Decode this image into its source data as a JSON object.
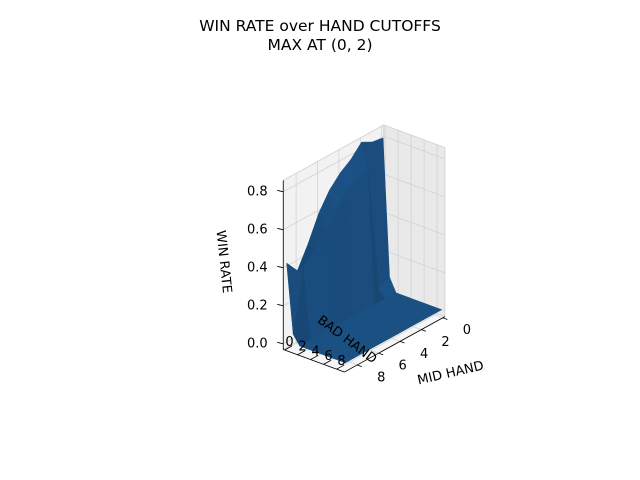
{
  "chart_data": {
    "type": "surface",
    "title": "WIN RATE over HAND CUTOFFS",
    "subtitle": "MAX AT (0, 2)",
    "xlabel": "MID HAND",
    "ylabel": "BAD HAND",
    "zlabel": "WIN RATE",
    "x_ticks": [
      "0",
      "2",
      "4",
      "6",
      "8"
    ],
    "y_ticks": [
      "0",
      "2",
      "4",
      "6",
      "8"
    ],
    "z_ticks": [
      "0.0",
      "0.2",
      "0.4",
      "0.6",
      "0.8"
    ],
    "zlim": [
      0,
      0.8
    ],
    "grid": true,
    "color": "#1f5a8f",
    "mid_hand": [
      0,
      1,
      2,
      3,
      4,
      5,
      6,
      7,
      8,
      9
    ],
    "bad_hand": [
      0,
      1,
      2,
      3,
      4,
      5,
      6,
      7,
      8,
      9
    ],
    "win_rate_at_bad_hand_0": [
      0.8,
      0.81,
      0.84,
      0.78,
      0.74,
      0.68,
      0.59,
      0.46,
      0.35,
      0.42
    ],
    "win_rate_at_bad_hand_1": [
      0.08,
      0.05,
      0.7,
      0.68,
      0.66,
      0.58,
      0.5,
      0.44,
      0.38,
      0.06
    ],
    "win_rate_at_bad_hand_2_to_9": 0.01
  }
}
